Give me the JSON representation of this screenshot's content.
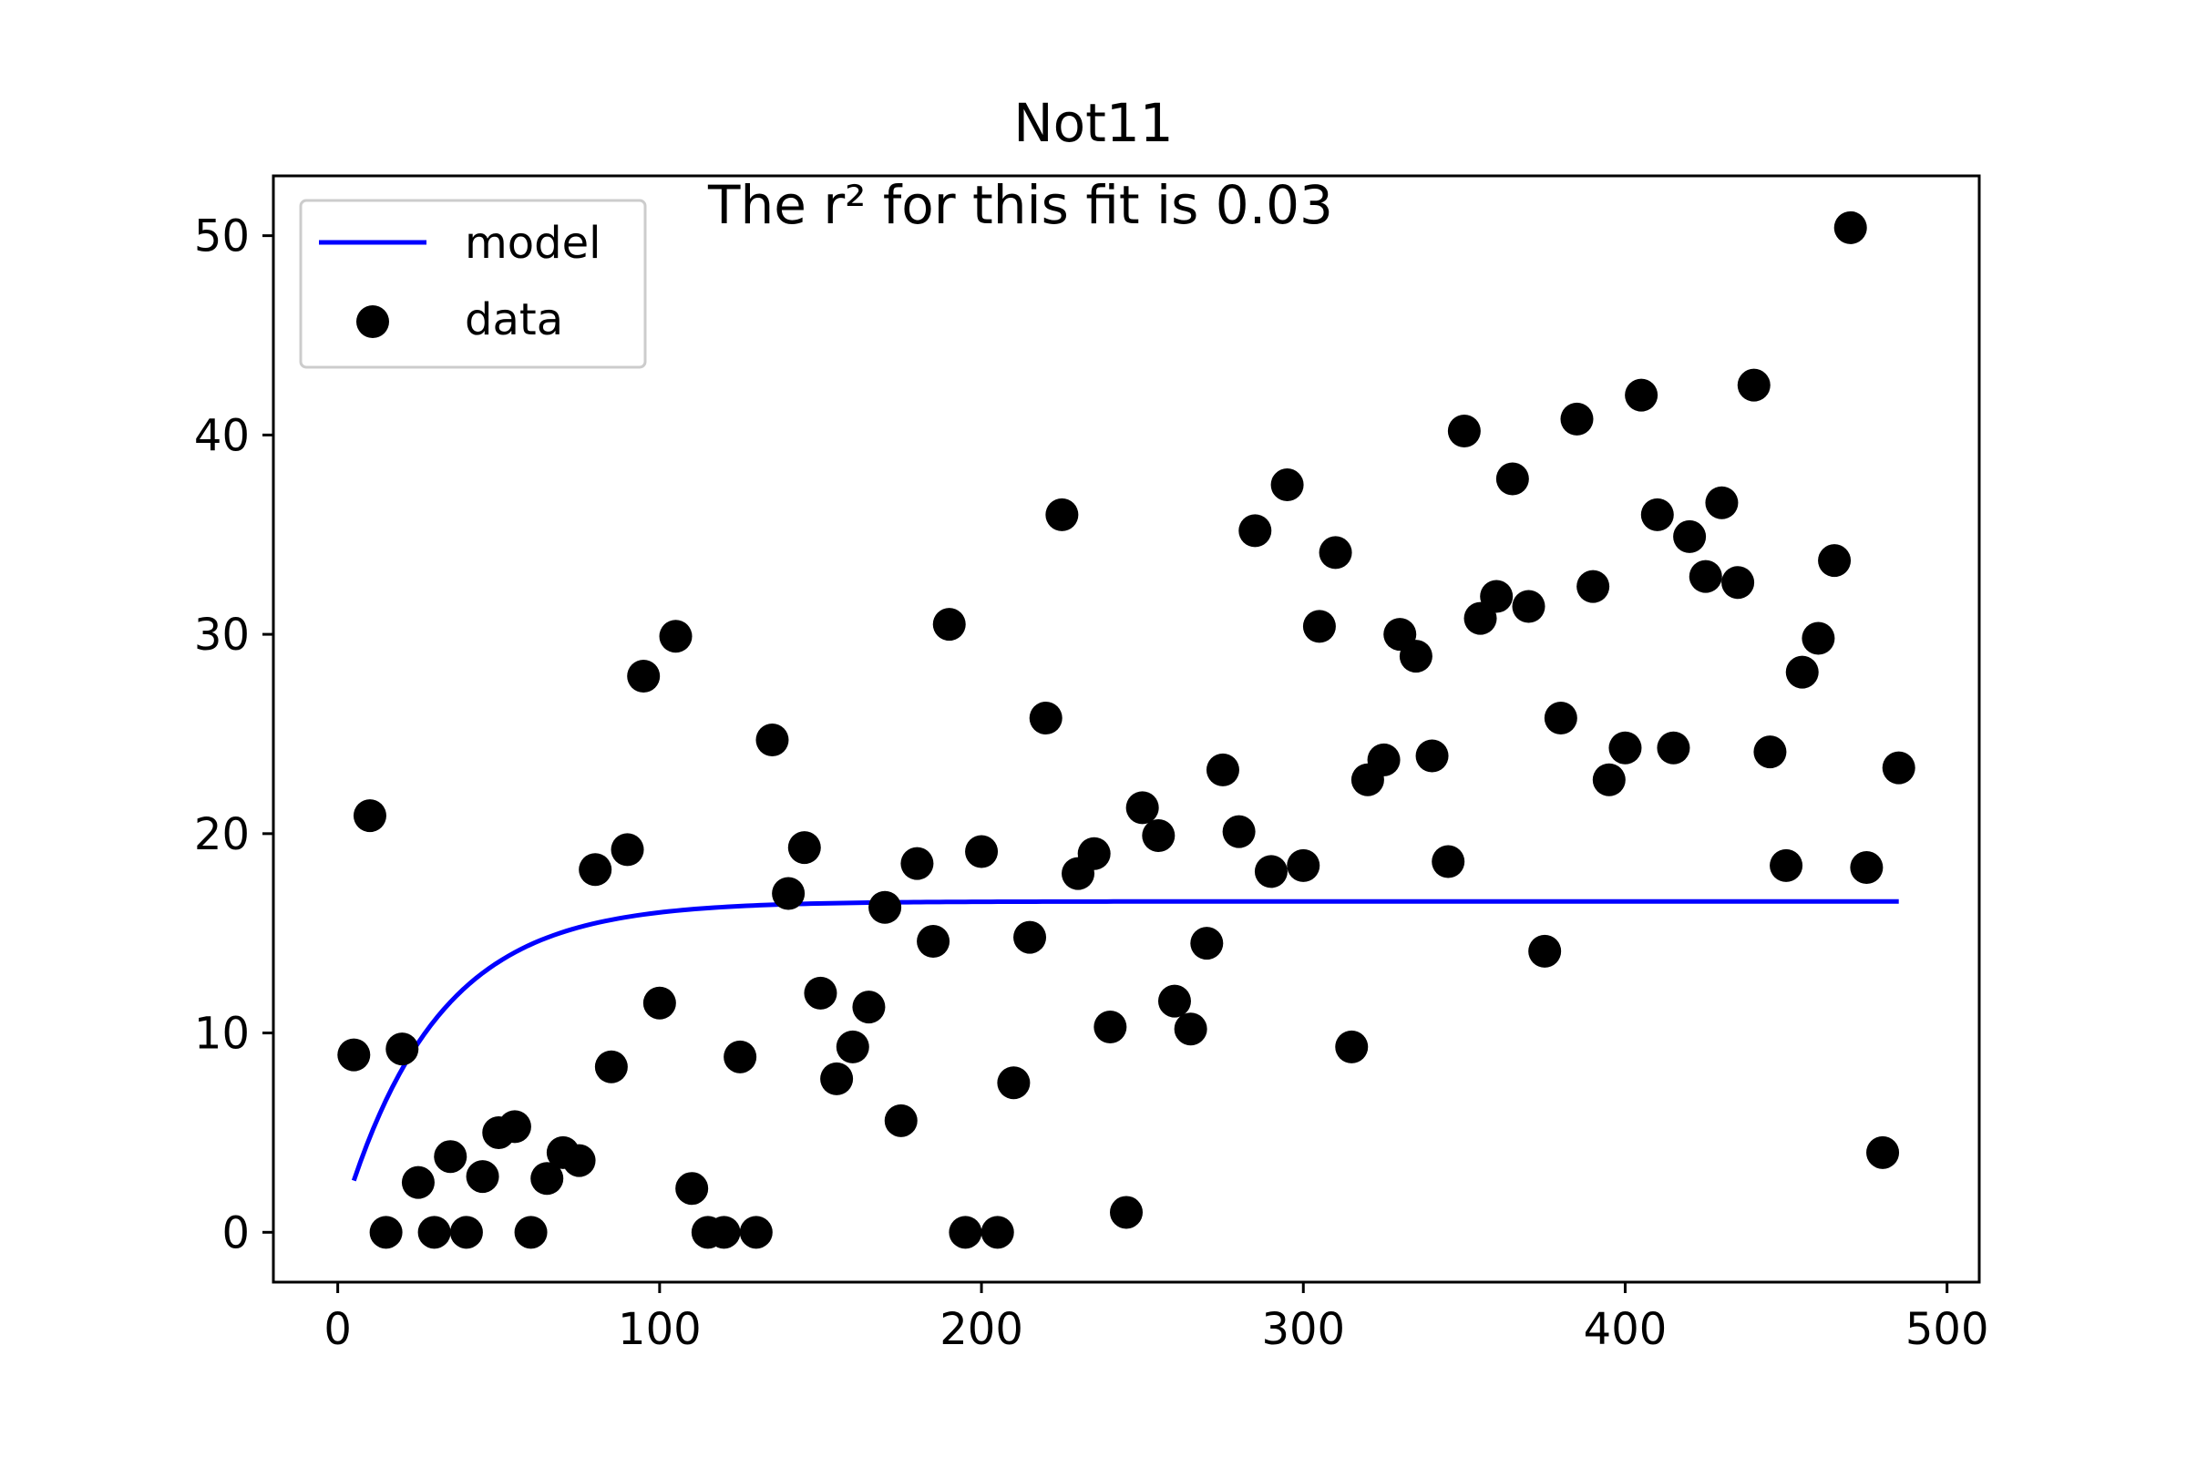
{
  "chart_data": {
    "type": "scatter",
    "title": "Not11",
    "annotation": "The r² for this fit is 0.03",
    "xlabel": "",
    "ylabel": "",
    "xlim": [
      -20,
      510
    ],
    "ylim": [
      -2.5,
      53
    ],
    "xticks": [
      0,
      100,
      200,
      300,
      400,
      500
    ],
    "yticks": [
      0,
      10,
      20,
      30,
      40,
      50
    ],
    "grid": false,
    "legend": {
      "position": "top-left",
      "entries": [
        {
          "label": "model",
          "kind": "line"
        },
        {
          "label": "data",
          "kind": "marker"
        }
      ]
    },
    "colors": {
      "model": "#0000ff",
      "data": "#000000",
      "axes": "#000000",
      "legend_border": "#cccccc"
    },
    "model": {
      "formula": "a*(1-exp(-b*x))",
      "a": 16.6,
      "b": 0.034,
      "x_range": [
        5,
        485
      ]
    },
    "series": [
      {
        "name": "data",
        "kind": "scatter",
        "points": [
          [
            5,
            8.9
          ],
          [
            10,
            20.9
          ],
          [
            15,
            0
          ],
          [
            20,
            9.2
          ],
          [
            25,
            2.5
          ],
          [
            30,
            0
          ],
          [
            35,
            3.8
          ],
          [
            40,
            0
          ],
          [
            45,
            2.8
          ],
          [
            50,
            5.0
          ],
          [
            55,
            5.3
          ],
          [
            60,
            0
          ],
          [
            65,
            2.7
          ],
          [
            70,
            4.0
          ],
          [
            75,
            3.6
          ],
          [
            80,
            18.2
          ],
          [
            85,
            8.3
          ],
          [
            90,
            19.2
          ],
          [
            95,
            27.9
          ],
          [
            100,
            11.5
          ],
          [
            105,
            29.9
          ],
          [
            110,
            2.2
          ],
          [
            115,
            0
          ],
          [
            120,
            0
          ],
          [
            125,
            8.8
          ],
          [
            130,
            0
          ],
          [
            135,
            24.7
          ],
          [
            140,
            17.0
          ],
          [
            145,
            19.3
          ],
          [
            150,
            12.0
          ],
          [
            155,
            7.7
          ],
          [
            160,
            9.3
          ],
          [
            165,
            11.3
          ],
          [
            170,
            16.3
          ],
          [
            175,
            5.6
          ],
          [
            180,
            18.5
          ],
          [
            185,
            14.6
          ],
          [
            190,
            30.5
          ],
          [
            195,
            0
          ],
          [
            200,
            19.1
          ],
          [
            205,
            0
          ],
          [
            210,
            7.5
          ],
          [
            215,
            14.8
          ],
          [
            220,
            25.8
          ],
          [
            225,
            36.0
          ],
          [
            230,
            18.0
          ],
          [
            235,
            19.0
          ],
          [
            240,
            10.3
          ],
          [
            245,
            1.0
          ],
          [
            250,
            21.3
          ],
          [
            255,
            19.9
          ],
          [
            260,
            11.6
          ],
          [
            265,
            10.2
          ],
          [
            270,
            14.5
          ],
          [
            275,
            23.2
          ],
          [
            280,
            20.1
          ],
          [
            285,
            35.2
          ],
          [
            290,
            18.1
          ],
          [
            295,
            37.5
          ],
          [
            300,
            18.4
          ],
          [
            305,
            30.4
          ],
          [
            310,
            34.1
          ],
          [
            315,
            9.3
          ],
          [
            320,
            22.7
          ],
          [
            325,
            23.7
          ],
          [
            330,
            30.0
          ],
          [
            335,
            28.9
          ],
          [
            340,
            23.9
          ],
          [
            345,
            18.6
          ],
          [
            350,
            40.2
          ],
          [
            355,
            30.8
          ],
          [
            360,
            31.9
          ],
          [
            365,
            37.8
          ],
          [
            370,
            31.4
          ],
          [
            375,
            14.1
          ],
          [
            380,
            25.8
          ],
          [
            385,
            40.8
          ],
          [
            390,
            32.4
          ],
          [
            395,
            22.7
          ],
          [
            400,
            24.3
          ],
          [
            405,
            42.0
          ],
          [
            410,
            36.0
          ],
          [
            415,
            24.3
          ],
          [
            420,
            34.9
          ],
          [
            425,
            32.9
          ],
          [
            430,
            36.6
          ],
          [
            435,
            32.6
          ],
          [
            440,
            42.5
          ],
          [
            445,
            24.1
          ],
          [
            450,
            18.4
          ],
          [
            455,
            28.1
          ],
          [
            460,
            29.8
          ],
          [
            465,
            33.7
          ],
          [
            470,
            50.4
          ],
          [
            475,
            18.3
          ],
          [
            480,
            4.0
          ],
          [
            485,
            23.3
          ]
        ]
      }
    ]
  }
}
